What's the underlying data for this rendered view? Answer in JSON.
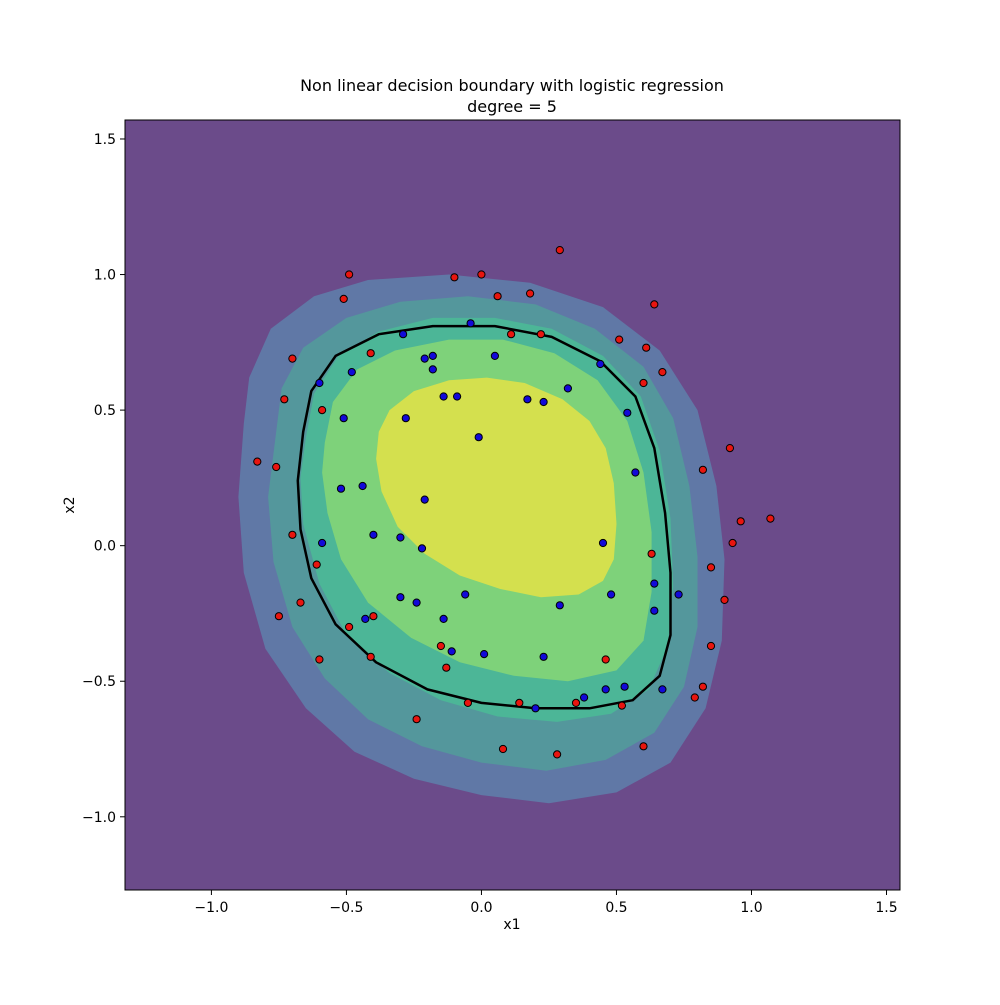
{
  "chart_data": {
    "type": "scatter",
    "title": "Non linear decision boundary with logistic regression",
    "subtitle": "degree = 5",
    "xlabel": "x1",
    "ylabel": "x2",
    "xlim": [
      -1.32,
      1.55
    ],
    "ylim": [
      -1.27,
      1.57
    ],
    "x_ticks": [
      -1.0,
      -0.5,
      0.0,
      0.5,
      1.0,
      1.5
    ],
    "y_ticks": [
      -1.0,
      -0.5,
      0.0,
      0.5,
      1.0,
      1.5
    ],
    "x_tick_labels": [
      "−1.0",
      "−0.5",
      "0.0",
      "0.5",
      "1.0",
      "1.5"
    ],
    "y_tick_labels": [
      "−1.0",
      "−0.5",
      "0.0",
      "0.5",
      "1.0",
      "1.5"
    ],
    "grid": false,
    "contour_levels": [
      {
        "level": 1,
        "color": "#6b4b8a",
        "boundary": []
      },
      {
        "level": 2,
        "color": "#6078a6",
        "boundary": [
          [
            -0.88,
            0.45
          ],
          [
            -0.86,
            0.62
          ],
          [
            -0.78,
            0.8
          ],
          [
            -0.62,
            0.92
          ],
          [
            -0.42,
            0.98
          ],
          [
            -0.12,
            1.0
          ],
          [
            0.18,
            0.97
          ],
          [
            0.45,
            0.88
          ],
          [
            0.66,
            0.72
          ],
          [
            0.8,
            0.5
          ],
          [
            0.87,
            0.22
          ],
          [
            0.9,
            -0.05
          ],
          [
            0.89,
            -0.35
          ],
          [
            0.83,
            -0.6
          ],
          [
            0.7,
            -0.8
          ],
          [
            0.5,
            -0.91
          ],
          [
            0.25,
            -0.95
          ],
          [
            0.0,
            -0.92
          ],
          [
            -0.25,
            -0.86
          ],
          [
            -0.47,
            -0.76
          ],
          [
            -0.65,
            -0.6
          ],
          [
            -0.8,
            -0.38
          ],
          [
            -0.88,
            -0.1
          ],
          [
            -0.9,
            0.18
          ]
        ]
      },
      {
        "level": 3,
        "color": "#54979c",
        "boundary": [
          [
            -0.76,
            0.42
          ],
          [
            -0.74,
            0.58
          ],
          [
            -0.66,
            0.73
          ],
          [
            -0.5,
            0.84
          ],
          [
            -0.3,
            0.9
          ],
          [
            -0.05,
            0.92
          ],
          [
            0.2,
            0.89
          ],
          [
            0.42,
            0.8
          ],
          [
            0.6,
            0.66
          ],
          [
            0.71,
            0.47
          ],
          [
            0.77,
            0.22
          ],
          [
            0.8,
            -0.04
          ],
          [
            0.8,
            -0.3
          ],
          [
            0.75,
            -0.52
          ],
          [
            0.64,
            -0.69
          ],
          [
            0.46,
            -0.79
          ],
          [
            0.24,
            -0.83
          ],
          [
            0.0,
            -0.8
          ],
          [
            -0.22,
            -0.74
          ],
          [
            -0.42,
            -0.64
          ],
          [
            -0.58,
            -0.49
          ],
          [
            -0.7,
            -0.3
          ],
          [
            -0.77,
            -0.06
          ],
          [
            -0.79,
            0.18
          ]
        ]
      },
      {
        "level": 4,
        "color": "#4cb697",
        "boundary": [
          [
            -0.65,
            0.4
          ],
          [
            -0.62,
            0.56
          ],
          [
            -0.53,
            0.7
          ],
          [
            -0.38,
            0.79
          ],
          [
            -0.18,
            0.84
          ],
          [
            0.05,
            0.84
          ],
          [
            0.26,
            0.8
          ],
          [
            0.45,
            0.7
          ],
          [
            0.59,
            0.55
          ],
          [
            0.66,
            0.35
          ],
          [
            0.7,
            0.1
          ],
          [
            0.71,
            -0.15
          ],
          [
            0.69,
            -0.37
          ],
          [
            0.62,
            -0.53
          ],
          [
            0.48,
            -0.62
          ],
          [
            0.28,
            -0.65
          ],
          [
            0.06,
            -0.63
          ],
          [
            -0.15,
            -0.57
          ],
          [
            -0.34,
            -0.47
          ],
          [
            -0.5,
            -0.33
          ],
          [
            -0.6,
            -0.14
          ],
          [
            -0.66,
            0.08
          ],
          [
            -0.67,
            0.25
          ]
        ]
      },
      {
        "level": 5,
        "color": "#7ed27a",
        "boundary": [
          [
            -0.58,
            0.38
          ],
          [
            -0.55,
            0.53
          ],
          [
            -0.46,
            0.65
          ],
          [
            -0.32,
            0.72
          ],
          [
            -0.12,
            0.76
          ],
          [
            0.08,
            0.76
          ],
          [
            0.27,
            0.71
          ],
          [
            0.43,
            0.61
          ],
          [
            0.54,
            0.46
          ],
          [
            0.6,
            0.27
          ],
          [
            0.63,
            0.05
          ],
          [
            0.63,
            -0.17
          ],
          [
            0.6,
            -0.35
          ],
          [
            0.5,
            -0.46
          ],
          [
            0.32,
            -0.5
          ],
          [
            0.12,
            -0.48
          ],
          [
            -0.08,
            -0.43
          ],
          [
            -0.26,
            -0.34
          ],
          [
            -0.42,
            -0.21
          ],
          [
            -0.52,
            -0.05
          ],
          [
            -0.57,
            0.12
          ],
          [
            -0.59,
            0.27
          ]
        ]
      },
      {
        "level": 6,
        "color": "#d4e04e",
        "boundary": [
          [
            -0.38,
            0.42
          ],
          [
            -0.34,
            0.5
          ],
          [
            -0.25,
            0.57
          ],
          [
            -0.12,
            0.61
          ],
          [
            0.02,
            0.62
          ],
          [
            0.16,
            0.6
          ],
          [
            0.3,
            0.54
          ],
          [
            0.4,
            0.46
          ],
          [
            0.46,
            0.36
          ],
          [
            0.49,
            0.23
          ],
          [
            0.5,
            0.08
          ],
          [
            0.49,
            -0.05
          ],
          [
            0.45,
            -0.13
          ],
          [
            0.36,
            -0.18
          ],
          [
            0.22,
            -0.19
          ],
          [
            0.07,
            -0.16
          ],
          [
            -0.08,
            -0.11
          ],
          [
            -0.21,
            -0.03
          ],
          [
            -0.31,
            0.07
          ],
          [
            -0.37,
            0.2
          ],
          [
            -0.39,
            0.32
          ]
        ]
      }
    ],
    "decision_boundary": {
      "color": "#000000",
      "points": [
        [
          -0.66,
          0.42
        ],
        [
          -0.63,
          0.57
        ],
        [
          -0.54,
          0.7
        ],
        [
          -0.38,
          0.78
        ],
        [
          -0.18,
          0.81
        ],
        [
          0.05,
          0.81
        ],
        [
          0.26,
          0.77
        ],
        [
          0.44,
          0.68
        ],
        [
          0.57,
          0.55
        ],
        [
          0.64,
          0.36
        ],
        [
          0.68,
          0.12
        ],
        [
          0.7,
          -0.1
        ],
        [
          0.7,
          -0.33
        ],
        [
          0.66,
          -0.48
        ],
        [
          0.56,
          -0.57
        ],
        [
          0.4,
          -0.6
        ],
        [
          0.2,
          -0.6
        ],
        [
          0.0,
          -0.58
        ],
        [
          -0.2,
          -0.53
        ],
        [
          -0.39,
          -0.43
        ],
        [
          -0.54,
          -0.29
        ],
        [
          -0.63,
          -0.12
        ],
        [
          -0.67,
          0.06
        ],
        [
          -0.68,
          0.24
        ]
      ]
    },
    "series": [
      {
        "color": "#e8150f",
        "edgecolor": "#000000",
        "x": [
          0.29,
          -0.49,
          -0.1,
          0.0,
          0.06,
          0.18,
          -0.51,
          0.64,
          -0.7,
          0.51,
          -0.41,
          0.61,
          0.67,
          -0.73,
          0.6,
          -0.59,
          -0.83,
          -0.76,
          0.92,
          0.82,
          1.07,
          0.96,
          0.93,
          -0.7,
          0.63,
          0.85,
          -0.61,
          -0.75,
          0.9,
          -0.67,
          -0.49,
          -0.4,
          0.85,
          -0.41,
          -0.15,
          -0.13,
          0.46,
          -0.6,
          0.82,
          0.79,
          0.52,
          -0.05,
          0.14,
          0.35,
          -0.24,
          0.6,
          0.08,
          0.28,
          0.11,
          0.22
        ],
        "y": [
          1.09,
          1.0,
          0.99,
          1.0,
          0.92,
          0.93,
          0.91,
          0.89,
          0.69,
          0.76,
          0.71,
          0.73,
          0.64,
          0.54,
          0.6,
          0.5,
          0.31,
          0.29,
          0.36,
          0.28,
          0.1,
          0.09,
          0.01,
          0.04,
          -0.03,
          -0.08,
          -0.07,
          -0.26,
          -0.2,
          -0.21,
          -0.3,
          -0.26,
          -0.37,
          -0.41,
          -0.37,
          -0.45,
          -0.42,
          -0.42,
          -0.52,
          -0.56,
          -0.59,
          -0.58,
          -0.58,
          -0.58,
          -0.64,
          -0.74,
          -0.75,
          -0.77,
          0.78,
          0.78
        ]
      },
      {
        "color": "#1209d9",
        "edgecolor": "#000000",
        "x": [
          -0.04,
          -0.29,
          -0.21,
          -0.18,
          -0.18,
          0.05,
          0.44,
          0.32,
          -0.48,
          -0.14,
          -0.09,
          -0.6,
          0.17,
          0.23,
          0.54,
          -0.51,
          -0.28,
          -0.01,
          -0.44,
          -0.52,
          0.57,
          -0.21,
          -0.4,
          -0.3,
          -0.22,
          -0.59,
          0.45,
          0.48,
          0.64,
          0.73,
          -0.3,
          -0.24,
          -0.06,
          0.29,
          0.64,
          -0.43,
          -0.14,
          -0.11,
          0.01,
          0.23,
          0.53,
          0.46,
          0.38,
          0.2,
          0.67
        ],
        "y": [
          0.82,
          0.78,
          0.69,
          0.7,
          0.65,
          0.7,
          0.67,
          0.58,
          0.64,
          0.55,
          0.55,
          0.6,
          0.54,
          0.53,
          0.49,
          0.47,
          0.47,
          0.4,
          0.22,
          0.21,
          0.27,
          0.17,
          0.04,
          0.03,
          -0.01,
          0.01,
          0.01,
          -0.18,
          -0.14,
          -0.18,
          -0.19,
          -0.21,
          -0.18,
          -0.22,
          -0.24,
          -0.27,
          -0.27,
          -0.39,
          -0.4,
          -0.41,
          -0.52,
          -0.53,
          -0.56,
          -0.6,
          -0.53
        ]
      }
    ]
  }
}
